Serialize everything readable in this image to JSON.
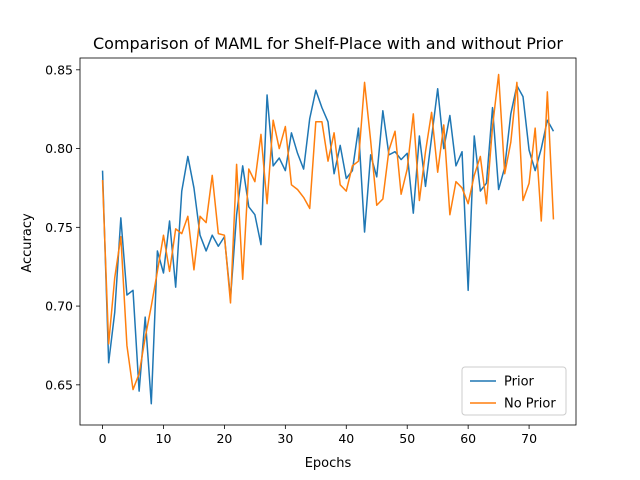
{
  "chart_data": {
    "type": "line",
    "title": "Comparison of MAML for Shelf-Place with and without Prior",
    "xlabel": "Epochs",
    "ylabel": "Accuracy",
    "xlim": [
      -3.7,
      77.7
    ],
    "ylim": [
      0.6245,
      0.8575
    ],
    "xticks": [
      0,
      10,
      20,
      30,
      40,
      50,
      60,
      70
    ],
    "yticks": [
      0.65,
      0.7,
      0.75,
      0.8,
      0.85
    ],
    "ytick_labels": [
      "0.65",
      "0.70",
      "0.75",
      "0.80",
      "0.85"
    ],
    "grid": false,
    "legend_position": "lower-right",
    "series": [
      {
        "name": "Prior",
        "color": "#1f77b4",
        "x": [
          0,
          1,
          2,
          3,
          4,
          5,
          6,
          7,
          8,
          9,
          10,
          11,
          12,
          13,
          14,
          15,
          16,
          17,
          18,
          19,
          20,
          21,
          22,
          23,
          24,
          25,
          26,
          27,
          28,
          29,
          30,
          31,
          32,
          33,
          34,
          35,
          36,
          37,
          38,
          39,
          40,
          41,
          42,
          43,
          44,
          45,
          46,
          47,
          48,
          49,
          50,
          51,
          52,
          53,
          54,
          55,
          56,
          57,
          58,
          59,
          60,
          61,
          62,
          63,
          64,
          65,
          66,
          67,
          68,
          69,
          70,
          71,
          72,
          73,
          74
        ],
        "values": [
          0.786,
          0.664,
          0.696,
          0.756,
          0.707,
          0.71,
          0.646,
          0.693,
          0.638,
          0.735,
          0.721,
          0.754,
          0.712,
          0.773,
          0.795,
          0.775,
          0.745,
          0.735,
          0.745,
          0.738,
          0.744,
          0.705,
          0.758,
          0.789,
          0.763,
          0.758,
          0.739,
          0.834,
          0.789,
          0.794,
          0.786,
          0.81,
          0.797,
          0.787,
          0.819,
          0.837,
          0.826,
          0.817,
          0.784,
          0.802,
          0.781,
          0.786,
          0.813,
          0.747,
          0.796,
          0.782,
          0.824,
          0.796,
          0.798,
          0.793,
          0.797,
          0.759,
          0.808,
          0.776,
          0.807,
          0.838,
          0.8,
          0.821,
          0.789,
          0.798,
          0.71,
          0.808,
          0.773,
          0.778,
          0.826,
          0.774,
          0.788,
          0.822,
          0.84,
          0.833,
          0.799,
          0.786,
          0.8,
          0.818,
          0.811
        ]
      },
      {
        "name": "No Prior",
        "color": "#ff7f0e",
        "x": [
          0,
          1,
          2,
          3,
          4,
          5,
          6,
          7,
          8,
          9,
          10,
          11,
          12,
          13,
          14,
          15,
          16,
          17,
          18,
          19,
          20,
          21,
          22,
          23,
          24,
          25,
          26,
          27,
          28,
          29,
          30,
          31,
          32,
          33,
          34,
          35,
          36,
          37,
          38,
          39,
          40,
          41,
          42,
          43,
          44,
          45,
          46,
          47,
          48,
          49,
          50,
          51,
          52,
          53,
          54,
          55,
          56,
          57,
          58,
          59,
          60,
          61,
          62,
          63,
          64,
          65,
          66,
          67,
          68,
          69,
          70,
          71,
          72,
          73,
          74
        ],
        "values": [
          0.78,
          0.676,
          0.718,
          0.744,
          0.675,
          0.647,
          0.657,
          0.68,
          0.7,
          0.722,
          0.745,
          0.722,
          0.749,
          0.746,
          0.757,
          0.723,
          0.757,
          0.753,
          0.783,
          0.746,
          0.745,
          0.702,
          0.79,
          0.717,
          0.787,
          0.779,
          0.809,
          0.765,
          0.818,
          0.8,
          0.814,
          0.777,
          0.774,
          0.769,
          0.762,
          0.817,
          0.817,
          0.792,
          0.81,
          0.777,
          0.773,
          0.789,
          0.792,
          0.842,
          0.805,
          0.764,
          0.768,
          0.799,
          0.811,
          0.771,
          0.787,
          0.822,
          0.767,
          0.798,
          0.823,
          0.785,
          0.815,
          0.758,
          0.779,
          0.775,
          0.765,
          0.783,
          0.795,
          0.765,
          0.814,
          0.847,
          0.784,
          0.804,
          0.842,
          0.767,
          0.778,
          0.813,
          0.754,
          0.836,
          0.755
        ]
      }
    ]
  }
}
